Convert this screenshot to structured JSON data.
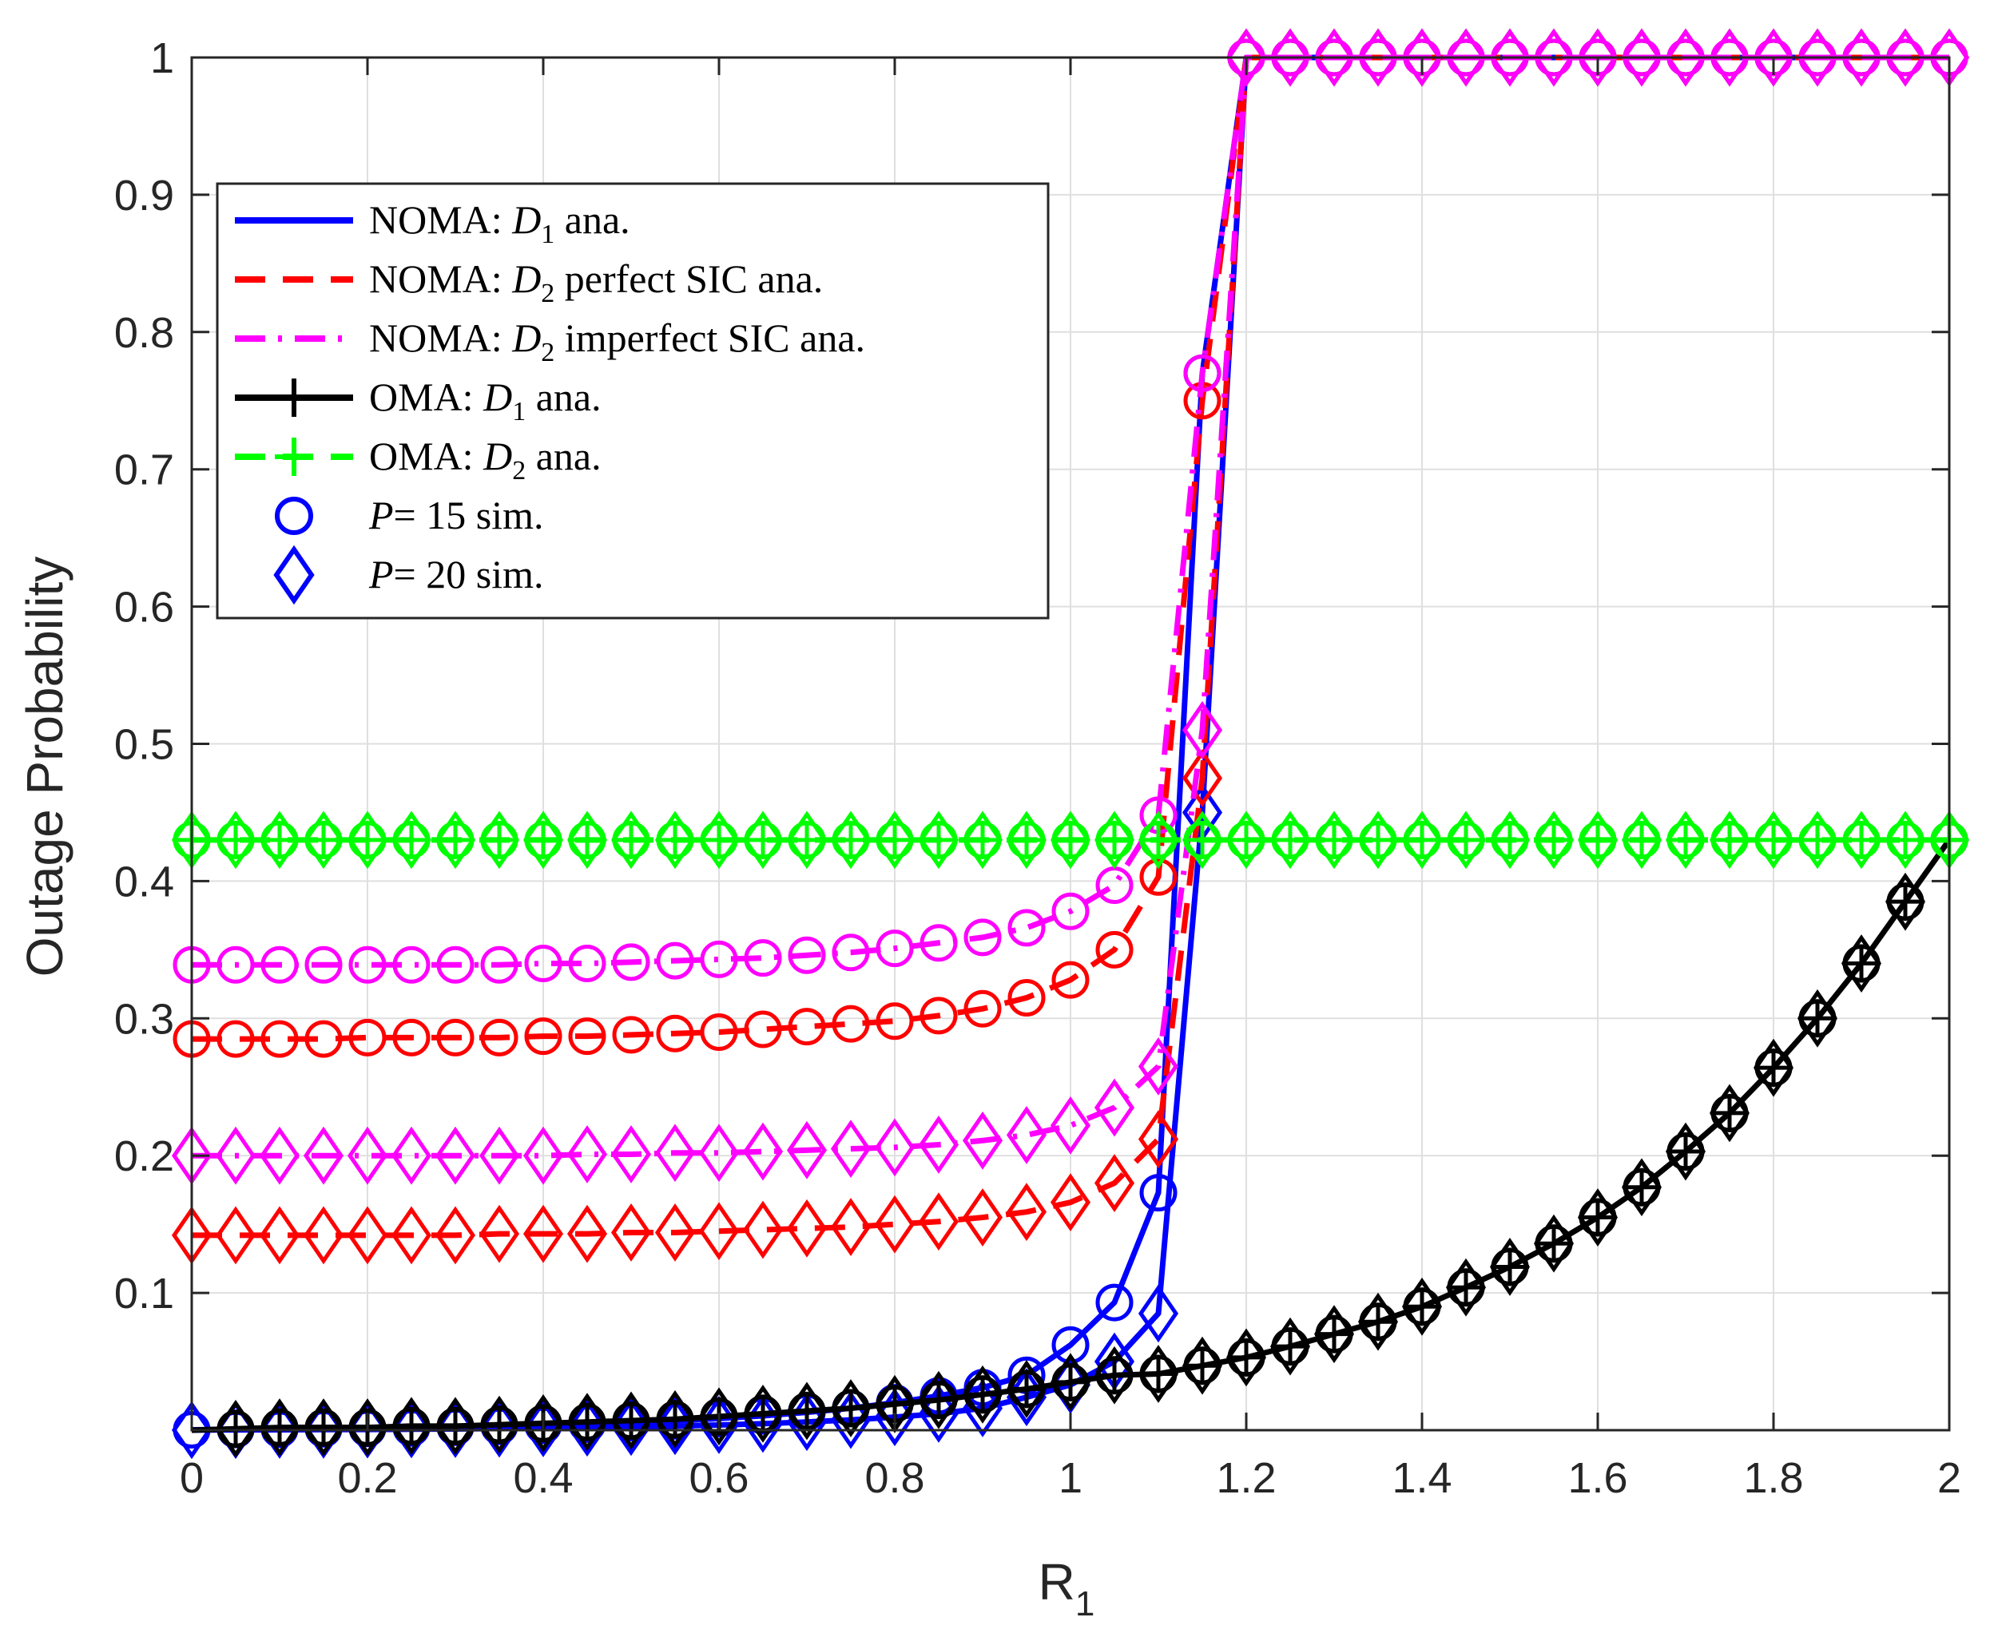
{
  "chart_data": {
    "type": "line",
    "title": "",
    "xlabel": "R",
    "xlabel_subscript": "1",
    "ylabel": "Outage Probability",
    "xlim": [
      0,
      2
    ],
    "ylim": [
      0,
      1
    ],
    "grid": true,
    "legend_position": "upper-left",
    "x_ticks": [
      "0",
      "0.2",
      "0.4",
      "0.6",
      "0.8",
      "1",
      "1.2",
      "1.4",
      "1.6",
      "1.8",
      "2"
    ],
    "y_ticks": [
      "0.1",
      "0.2",
      "0.3",
      "0.4",
      "0.5",
      "0.6",
      "0.7",
      "0.8",
      "0.9",
      "1"
    ],
    "x": [
      0,
      0.05,
      0.1,
      0.15,
      0.2,
      0.25,
      0.3,
      0.35,
      0.4,
      0.45,
      0.5,
      0.55,
      0.6,
      0.65,
      0.7,
      0.75,
      0.8,
      0.85,
      0.9,
      0.95,
      1.0,
      1.05,
      1.1,
      1.15,
      1.2,
      1.25,
      1.3,
      1.35,
      1.4,
      1.45,
      1.5,
      1.55,
      1.6,
      1.65,
      1.7,
      1.75,
      1.8,
      1.85,
      1.9,
      1.95,
      2.0
    ],
    "series": [
      {
        "name": "NOMA D1 P=15",
        "color": "#0000ff",
        "dash": "solid",
        "marker": "circle",
        "values": [
          0.0003,
          0.0005,
          0.0007,
          0.001,
          0.0013,
          0.0017,
          0.0022,
          0.0028,
          0.0035,
          0.0044,
          0.0055,
          0.0068,
          0.0085,
          0.0105,
          0.013,
          0.016,
          0.02,
          0.025,
          0.031,
          0.04,
          0.062,
          0.093,
          0.173,
          0.77,
          1,
          1,
          1,
          1,
          1,
          1,
          1,
          1,
          1,
          1,
          1,
          1,
          1,
          1,
          1,
          1,
          1
        ]
      },
      {
        "name": "NOMA D1 P=20",
        "color": "#0000ff",
        "dash": "solid",
        "marker": "diamond",
        "values": [
          0.0001,
          0.0002,
          0.0003,
          0.0004,
          0.0005,
          0.0007,
          0.0009,
          0.0012,
          0.0015,
          0.0019,
          0.0024,
          0.003,
          0.0038,
          0.0047,
          0.006,
          0.0075,
          0.0095,
          0.012,
          0.016,
          0.024,
          0.033,
          0.05,
          0.085,
          0.45,
          1,
          1,
          1,
          1,
          1,
          1,
          1,
          1,
          1,
          1,
          1,
          1,
          1,
          1,
          1,
          1,
          1
        ]
      },
      {
        "name": "NOMA D2 perfect SIC P=15",
        "color": "#ff0000",
        "dash": "dashed",
        "marker": "circle",
        "values": [
          0.285,
          0.285,
          0.285,
          0.285,
          0.286,
          0.286,
          0.286,
          0.286,
          0.287,
          0.287,
          0.288,
          0.289,
          0.29,
          0.292,
          0.294,
          0.296,
          0.298,
          0.302,
          0.307,
          0.315,
          0.328,
          0.35,
          0.403,
          0.75,
          1,
          1,
          1,
          1,
          1,
          1,
          1,
          1,
          1,
          1,
          1,
          1,
          1,
          1,
          1,
          1,
          1
        ]
      },
      {
        "name": "NOMA D2 perfect SIC P=20",
        "color": "#ff0000",
        "dash": "dashed",
        "marker": "diamond",
        "values": [
          0.142,
          0.142,
          0.142,
          0.142,
          0.142,
          0.142,
          0.142,
          0.143,
          0.143,
          0.143,
          0.144,
          0.144,
          0.145,
          0.146,
          0.147,
          0.148,
          0.15,
          0.152,
          0.155,
          0.159,
          0.166,
          0.18,
          0.212,
          0.475,
          1,
          1,
          1,
          1,
          1,
          1,
          1,
          1,
          1,
          1,
          1,
          1,
          1,
          1,
          1,
          1,
          1
        ]
      },
      {
        "name": "NOMA D2 imperfect SIC P=15",
        "color": "#ff00ff",
        "dash": "dashdot",
        "marker": "circle",
        "values": [
          0.339,
          0.339,
          0.339,
          0.339,
          0.339,
          0.339,
          0.339,
          0.339,
          0.34,
          0.34,
          0.341,
          0.342,
          0.343,
          0.344,
          0.346,
          0.348,
          0.351,
          0.355,
          0.359,
          0.366,
          0.378,
          0.397,
          0.448,
          0.77,
          1,
          1,
          1,
          1,
          1,
          1,
          1,
          1,
          1,
          1,
          1,
          1,
          1,
          1,
          1,
          1,
          1
        ]
      },
      {
        "name": "NOMA D2 imperfect SIC P=20",
        "color": "#ff00ff",
        "dash": "dashdot",
        "marker": "diamond",
        "values": [
          0.2,
          0.2,
          0.2,
          0.2,
          0.2,
          0.2,
          0.2,
          0.2,
          0.2,
          0.201,
          0.201,
          0.202,
          0.202,
          0.203,
          0.204,
          0.205,
          0.206,
          0.208,
          0.211,
          0.215,
          0.222,
          0.235,
          0.265,
          0.51,
          1,
          1,
          1,
          1,
          1,
          1,
          1,
          1,
          1,
          1,
          1,
          1,
          1,
          1,
          1,
          1,
          1
        ]
      },
      {
        "name": "OMA D1",
        "color": "#000000",
        "dash": "solid",
        "marker": "plus-circle-diamond",
        "values": [
          0.0,
          0.001,
          0.002,
          0.002,
          0.002,
          0.003,
          0.003,
          0.004,
          0.005,
          0.006,
          0.007,
          0.008,
          0.01,
          0.012,
          0.014,
          0.016,
          0.019,
          0.022,
          0.026,
          0.03,
          0.035,
          0.04,
          0.041,
          0.047,
          0.053,
          0.061,
          0.07,
          0.079,
          0.09,
          0.104,
          0.119,
          0.136,
          0.155,
          0.177,
          0.203,
          0.231,
          0.264,
          0.3,
          0.34,
          0.385,
          0.43
        ]
      },
      {
        "name": "OMA D2",
        "color": "#00ff00",
        "dash": "dashed",
        "marker": "plus-circle-diamond",
        "values": [
          0.43,
          0.43,
          0.43,
          0.43,
          0.43,
          0.43,
          0.43,
          0.43,
          0.43,
          0.43,
          0.43,
          0.43,
          0.43,
          0.43,
          0.43,
          0.43,
          0.43,
          0.43,
          0.43,
          0.43,
          0.43,
          0.43,
          0.43,
          0.43,
          0.43,
          0.43,
          0.43,
          0.43,
          0.43,
          0.43,
          0.43,
          0.43,
          0.43,
          0.43,
          0.43,
          0.43,
          0.43,
          0.43,
          0.43,
          0.43,
          0.43
        ]
      }
    ],
    "legend": [
      {
        "prefix": "NOMA: ",
        "symbol": "D",
        "sub": "1",
        "suffix": " ana.",
        "color": "#0000ff",
        "dash": "solid",
        "marker": "none"
      },
      {
        "prefix": "NOMA: ",
        "symbol": "D",
        "sub": "2",
        "suffix": " perfect SIC ana.",
        "color": "#ff0000",
        "dash": "dashed",
        "marker": "none"
      },
      {
        "prefix": "NOMA: ",
        "symbol": "D",
        "sub": "2",
        "suffix": " imperfect SIC ana.",
        "color": "#ff00ff",
        "dash": "dashdot",
        "marker": "none"
      },
      {
        "prefix": "OMA: ",
        "symbol": "D",
        "sub": "1",
        "suffix": " ana.",
        "color": "#000000",
        "dash": "solid",
        "marker": "plus"
      },
      {
        "prefix": "OMA: ",
        "symbol": "D",
        "sub": "2",
        "suffix": " ana.",
        "color": "#00ff00",
        "dash": "dashed",
        "marker": "plus"
      },
      {
        "prefix": "",
        "symbol": "P",
        "sub": "",
        "suffix": "= 15 sim.",
        "color": "#0000ff",
        "dash": "none",
        "marker": "circle"
      },
      {
        "prefix": "",
        "symbol": "P",
        "sub": "",
        "suffix": "= 20 sim.",
        "color": "#0000ff",
        "dash": "none",
        "marker": "diamond"
      }
    ]
  }
}
